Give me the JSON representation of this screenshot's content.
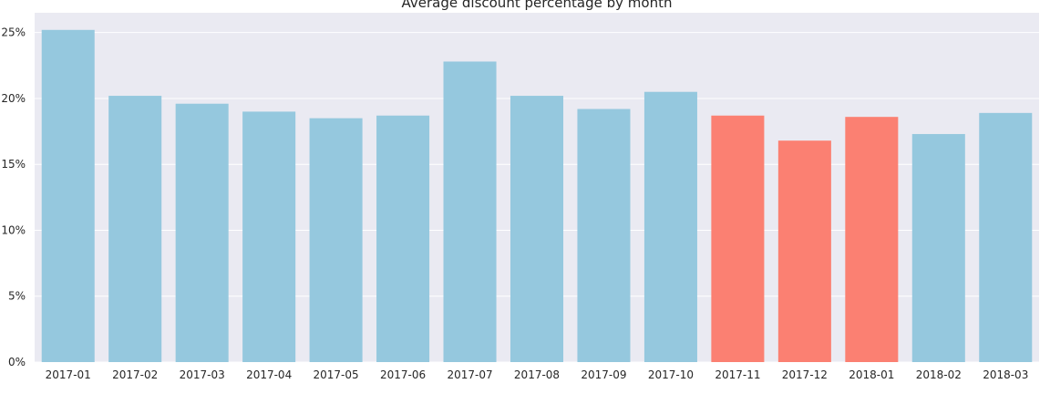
{
  "chart_data": {
    "type": "bar",
    "title": "Average discount percentage by month",
    "xlabel": "",
    "ylabel": "",
    "categories": [
      "2017-01",
      "2017-02",
      "2017-03",
      "2017-04",
      "2017-05",
      "2017-06",
      "2017-07",
      "2017-08",
      "2017-09",
      "2017-10",
      "2017-11",
      "2017-12",
      "2018-01",
      "2018-02",
      "2018-03"
    ],
    "values": [
      25.2,
      20.2,
      19.6,
      19.0,
      18.5,
      18.7,
      22.8,
      20.2,
      19.2,
      20.5,
      18.7,
      16.8,
      18.6,
      17.3,
      18.9
    ],
    "highlighted": [
      "2017-11",
      "2017-12",
      "2018-01"
    ],
    "ylim": [
      0,
      26.5
    ],
    "yticks": [
      0,
      5,
      10,
      15,
      20,
      25
    ],
    "ytick_labels": [
      "0%",
      "5%",
      "10%",
      "15%",
      "20%",
      "25%"
    ],
    "grid": true,
    "colors": {
      "bar": "#95c8de",
      "highlight": "#fb8072",
      "plot_background": "#eaeaf2",
      "grid": "#ffffff"
    }
  }
}
